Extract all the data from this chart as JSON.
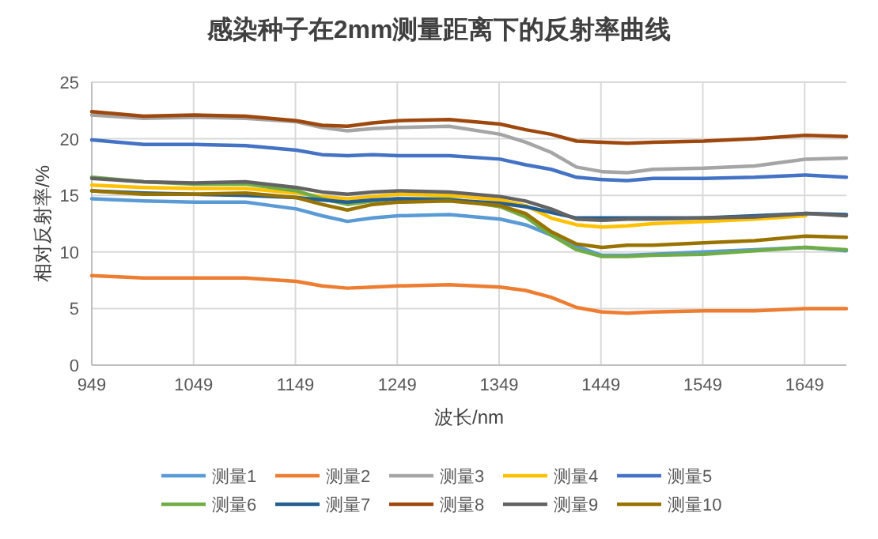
{
  "chart_data": {
    "type": "line",
    "title": "感染种子在2mm测量距离下的反射率曲线",
    "xlabel": "波长/nm",
    "ylabel": "相对反射率/%",
    "x": [
      949,
      1000,
      1050,
      1100,
      1150,
      1175,
      1200,
      1225,
      1250,
      1300,
      1350,
      1375,
      1400,
      1425,
      1450,
      1475,
      1500,
      1550,
      1600,
      1650,
      1690
    ],
    "xlim": [
      949,
      1690
    ],
    "xticks": [
      949,
      1049,
      1149,
      1249,
      1349,
      1449,
      1549,
      1649
    ],
    "ylim": [
      0,
      25
    ],
    "yticks": [
      0,
      5,
      10,
      15,
      20,
      25
    ],
    "grid": true,
    "legend": "bottom",
    "series": [
      {
        "name": "测量1",
        "color": "#5b9bd5",
        "values": [
          14.7,
          14.5,
          14.4,
          14.4,
          13.8,
          13.2,
          12.7,
          13.0,
          13.2,
          13.3,
          12.9,
          12.4,
          11.5,
          10.5,
          9.7,
          9.7,
          9.8,
          10.0,
          10.2,
          10.4,
          10.1
        ]
      },
      {
        "name": "测量2",
        "color": "#ed7d31",
        "values": [
          7.9,
          7.7,
          7.7,
          7.7,
          7.4,
          7.0,
          6.8,
          6.9,
          7.0,
          7.1,
          6.9,
          6.6,
          6.0,
          5.1,
          4.7,
          4.6,
          4.7,
          4.8,
          4.8,
          5.0,
          5.0
        ]
      },
      {
        "name": "测量3",
        "color": "#a5a5a5",
        "values": [
          22.1,
          21.8,
          21.9,
          21.8,
          21.5,
          21.0,
          20.7,
          20.9,
          21.0,
          21.1,
          20.4,
          19.7,
          18.8,
          17.5,
          17.1,
          17.0,
          17.3,
          17.4,
          17.6,
          18.2,
          18.3
        ]
      },
      {
        "name": "测量4",
        "color": "#ffc000",
        "values": [
          15.9,
          15.7,
          15.6,
          15.6,
          15.2,
          14.9,
          14.7,
          14.9,
          15.1,
          15.0,
          14.6,
          14.1,
          13.0,
          12.4,
          12.2,
          12.3,
          12.5,
          12.7,
          12.9,
          13.2,
          null
        ]
      },
      {
        "name": "测量5",
        "color": "#4472c4",
        "values": [
          19.9,
          19.5,
          19.5,
          19.4,
          19.0,
          18.6,
          18.5,
          18.6,
          18.5,
          18.5,
          18.2,
          17.7,
          17.3,
          16.6,
          16.4,
          16.3,
          16.5,
          16.5,
          16.6,
          16.8,
          16.6
        ]
      },
      {
        "name": "测量6",
        "color": "#70ad47",
        "values": [
          16.6,
          16.2,
          16.0,
          16.0,
          15.4,
          14.7,
          14.2,
          14.5,
          14.7,
          14.7,
          14.0,
          13.1,
          11.5,
          10.2,
          9.6,
          9.6,
          9.7,
          9.8,
          10.1,
          10.4,
          10.2
        ]
      },
      {
        "name": "测量7",
        "color": "#255e91",
        "values": [
          15.4,
          15.2,
          15.1,
          15.0,
          14.8,
          14.6,
          14.4,
          14.6,
          14.7,
          14.6,
          14.3,
          14.0,
          13.5,
          13.0,
          13.0,
          13.0,
          13.0,
          13.0,
          13.2,
          13.4,
          13.3
        ]
      },
      {
        "name": "测量8",
        "color": "#9e480e",
        "values": [
          22.4,
          22.0,
          22.1,
          22.0,
          21.6,
          21.2,
          21.1,
          21.4,
          21.6,
          21.7,
          21.3,
          20.8,
          20.4,
          19.8,
          19.7,
          19.6,
          19.7,
          19.8,
          20.0,
          20.3,
          20.2
        ]
      },
      {
        "name": "测量9",
        "color": "#636363",
        "values": [
          16.5,
          16.2,
          16.1,
          16.2,
          15.7,
          15.3,
          15.1,
          15.3,
          15.4,
          15.3,
          14.9,
          14.5,
          13.8,
          12.9,
          12.8,
          12.9,
          12.9,
          13.0,
          13.1,
          13.4,
          13.2
        ]
      },
      {
        "name": "测量10",
        "color": "#997300",
        "values": [
          15.4,
          15.1,
          15.1,
          15.2,
          14.8,
          14.2,
          13.7,
          14.2,
          14.4,
          14.5,
          14.1,
          13.4,
          11.8,
          10.7,
          10.4,
          10.6,
          10.6,
          10.8,
          11.0,
          11.4,
          11.3
        ]
      }
    ]
  }
}
